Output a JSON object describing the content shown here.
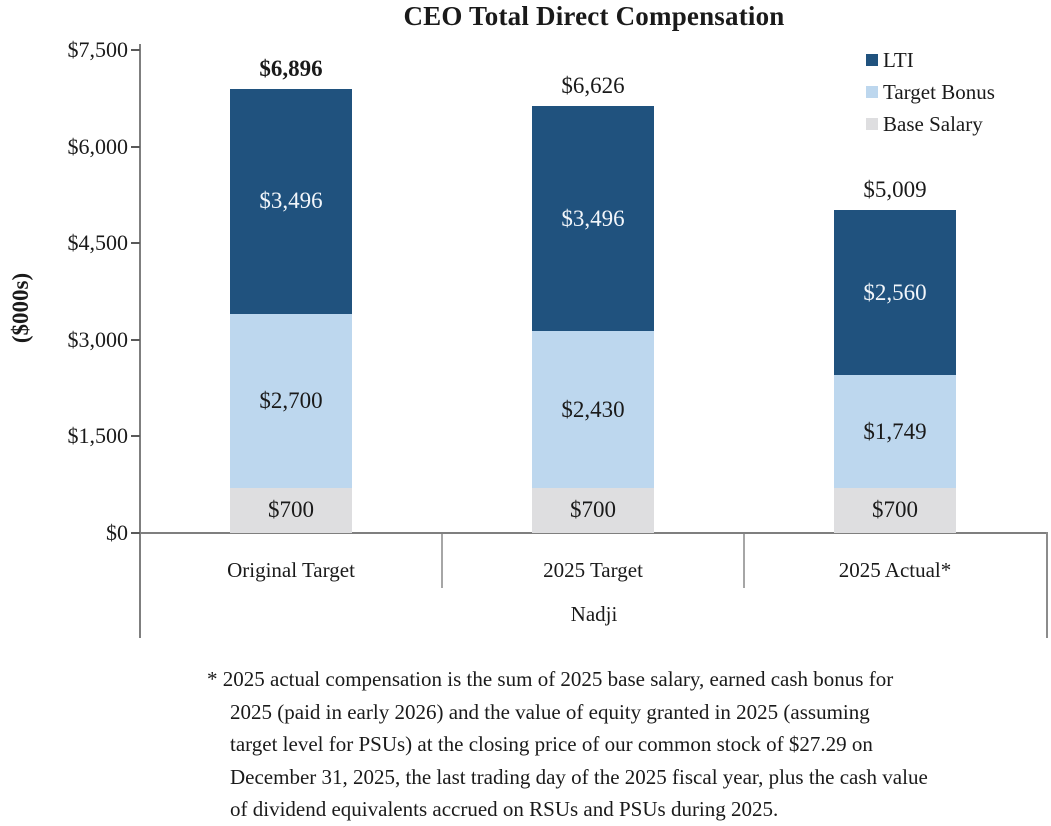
{
  "title": "CEO Total Direct Compensation",
  "group_label": "Nadji",
  "footnote": {
    "text": "* 2025 actual compensation is the sum of 2025 base salary, earned cash bonus for\n2025 (paid in early 2026) and the value of equity granted in 2025 (assuming\ntarget level for PSUs) at the closing price of our common stock of $27.29 on\nDecember 31, 2025, the last trading day of the 2025 fiscal year, plus the cash value\nof dividend equivalents accrued on RSUs and PSUs during 2025."
  },
  "chart_data": {
    "type": "bar",
    "stacked": true,
    "title": "CEO Total Direct Compensation",
    "xlabel": "Nadji",
    "ylabel": "($000s)",
    "ylim": [
      0,
      7500
    ],
    "y_ticks": [
      {
        "value": 0,
        "label": "$0"
      },
      {
        "value": 1500,
        "label": "$1,500"
      },
      {
        "value": 3000,
        "label": "$3,000"
      },
      {
        "value": 4500,
        "label": "$4,500"
      },
      {
        "value": 6000,
        "label": "$6,000"
      },
      {
        "value": 7500,
        "label": "$7,500"
      }
    ],
    "categories": [
      "Original Target",
      "2025 Target",
      "2025 Actual*"
    ],
    "series": [
      {
        "name": "Base Salary",
        "color": "#dedee0",
        "text_color": "#1a1a1a",
        "values": [
          700,
          700,
          700
        ],
        "labels": [
          "$700",
          "$700",
          "$700"
        ]
      },
      {
        "name": "Target Bonus",
        "color": "#bdd7ee",
        "text_color": "#1a1a1a",
        "values": [
          2700,
          2430,
          1749
        ],
        "labels": [
          "$2,700",
          "$2,430",
          "$1,749"
        ]
      },
      {
        "name": "LTI",
        "color": "#20527e",
        "text_color": "#f2f6fa",
        "values": [
          3496,
          3496,
          2560
        ],
        "labels": [
          "$3,496",
          "$3,496",
          "$2,560"
        ]
      }
    ],
    "totals": [
      {
        "value": 6896,
        "label": "$6,896",
        "bold": true
      },
      {
        "value": 6626,
        "label": "$6,626",
        "bold": false
      },
      {
        "value": 5009,
        "label": "$5,009",
        "bold": false
      }
    ],
    "legend_position": "top-right",
    "grid": false
  }
}
